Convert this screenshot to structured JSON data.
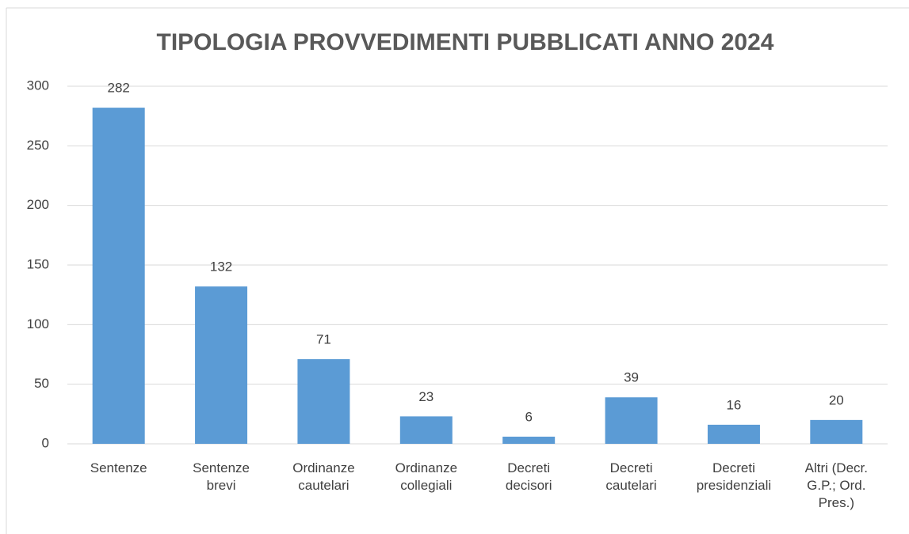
{
  "chart_data": {
    "type": "bar",
    "title": "TIPOLOGIA PROVVEDIMENTI PUBBLICATI ANNO 2024",
    "categories": [
      "Sentenze",
      "Sentenze brevi",
      "Ordinanze cautelari",
      "Ordinanze collegiali",
      "Decreti decisori",
      "Decreti cautelari",
      "Decreti presidenziali",
      "Altri (Decr. G.P.; Ord. Pres.)"
    ],
    "values": [
      282,
      132,
      71,
      23,
      6,
      39,
      16,
      20
    ],
    "color": "#5b9bd5",
    "ylim": [
      0,
      300
    ],
    "yticks": [
      0,
      50,
      100,
      150,
      200,
      250,
      300
    ],
    "grid": true
  }
}
